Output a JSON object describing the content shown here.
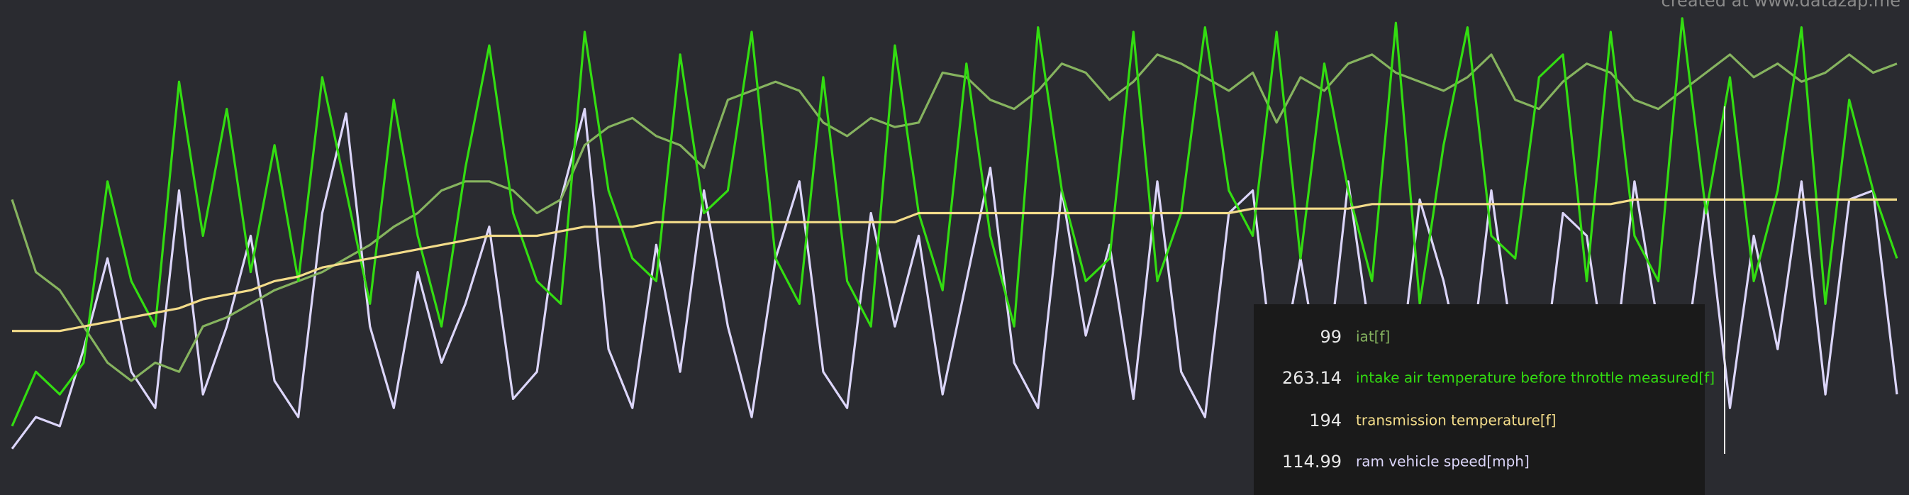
{
  "chart_data": {
    "type": "line",
    "x": [
      0,
      1,
      2,
      3,
      4,
      5,
      6,
      7,
      8,
      9,
      10,
      11,
      12,
      13,
      14,
      15,
      16,
      17,
      18,
      19,
      20,
      21,
      22,
      23,
      24,
      25,
      26,
      27,
      28,
      29,
      30,
      31,
      32,
      33,
      34,
      35,
      36,
      37,
      38,
      39,
      40,
      41,
      42,
      43,
      44,
      45,
      46,
      47,
      48,
      49,
      50,
      51,
      52,
      53,
      54,
      55,
      56,
      57,
      58,
      59,
      60,
      61,
      62,
      63,
      64,
      65,
      66,
      67,
      68,
      69,
      70,
      71,
      72,
      73,
      74,
      75,
      76,
      77,
      78,
      79
    ],
    "xlim": [
      0,
      79
    ],
    "ylim": [
      0,
      100
    ],
    "series": [
      {
        "name": "iat[f]",
        "color": "#86b35f",
        "values": [
          58,
          42,
          38,
          30,
          22,
          18,
          22,
          20,
          30,
          32,
          35,
          38,
          40,
          42,
          45,
          48,
          52,
          55,
          60,
          62,
          62,
          60,
          55,
          58,
          70,
          74,
          76,
          72,
          70,
          65,
          80,
          82,
          84,
          82,
          75,
          72,
          76,
          74,
          75,
          86,
          85,
          80,
          78,
          82,
          88,
          86,
          80,
          84,
          90,
          88,
          85,
          82,
          86,
          75,
          85,
          82,
          88,
          90,
          86,
          84,
          82,
          85,
          90,
          80,
          78,
          84,
          88,
          86,
          80,
          78,
          82,
          86,
          90,
          85,
          88,
          84,
          86,
          90,
          86,
          88
        ]
      },
      {
        "name": "intake air temperature before throttle measured[f]",
        "color": "#33dd11",
        "values": [
          8,
          20,
          15,
          22,
          62,
          40,
          30,
          84,
          50,
          78,
          42,
          70,
          40,
          85,
          60,
          35,
          80,
          50,
          30,
          65,
          92,
          55,
          40,
          35,
          95,
          60,
          45,
          40,
          90,
          55,
          60,
          95,
          45,
          35,
          85,
          40,
          30,
          92,
          55,
          38,
          88,
          50,
          30,
          96,
          60,
          40,
          45,
          95,
          40,
          55,
          96,
          60,
          50,
          95,
          45,
          88,
          60,
          40,
          97,
          35,
          70,
          96,
          50,
          45,
          85,
          90,
          40,
          95,
          50,
          40,
          98,
          55,
          85,
          40,
          60,
          96,
          35,
          80,
          60,
          45
        ]
      },
      {
        "name": "transmission temperature[f]",
        "color": "#f3dc8a",
        "values": [
          29,
          29,
          29,
          30,
          31,
          32,
          33,
          34,
          36,
          37,
          38,
          40,
          41,
          43,
          44,
          45,
          46,
          47,
          48,
          49,
          50,
          50,
          50,
          51,
          52,
          52,
          52,
          53,
          53,
          53,
          53,
          53,
          53,
          53,
          53,
          53,
          53,
          53,
          55,
          55,
          55,
          55,
          55,
          55,
          55,
          55,
          55,
          55,
          55,
          55,
          55,
          55,
          56,
          56,
          56,
          56,
          56,
          57,
          57,
          57,
          57,
          57,
          57,
          57,
          57,
          57,
          57,
          57,
          58,
          58,
          58,
          58,
          58,
          58,
          58,
          58,
          58,
          58,
          58,
          58
        ]
      },
      {
        "name": "ram vehicle speed[mph]",
        "color": "#dcd6fa",
        "values": [
          3,
          10,
          8,
          25,
          45,
          20,
          12,
          60,
          15,
          30,
          50,
          18,
          10,
          55,
          77,
          30,
          12,
          42,
          22,
          35,
          52,
          14,
          20,
          58,
          78,
          25,
          12,
          48,
          20,
          60,
          30,
          10,
          45,
          62,
          20,
          12,
          55,
          30,
          50,
          15,
          40,
          65,
          22,
          12,
          60,
          28,
          48,
          14,
          62,
          20,
          10,
          55,
          60,
          15,
          45,
          14,
          62,
          25,
          12,
          58,
          40,
          15,
          60,
          22,
          12,
          55,
          50,
          14,
          62,
          30,
          18,
          58,
          12,
          50,
          25,
          62,
          15,
          58,
          60,
          15
        ]
      }
    ]
  },
  "watermark": "created at www.datazap.me",
  "tooltip": {
    "values": [
      99,
      263.14,
      194,
      114.99
    ]
  }
}
